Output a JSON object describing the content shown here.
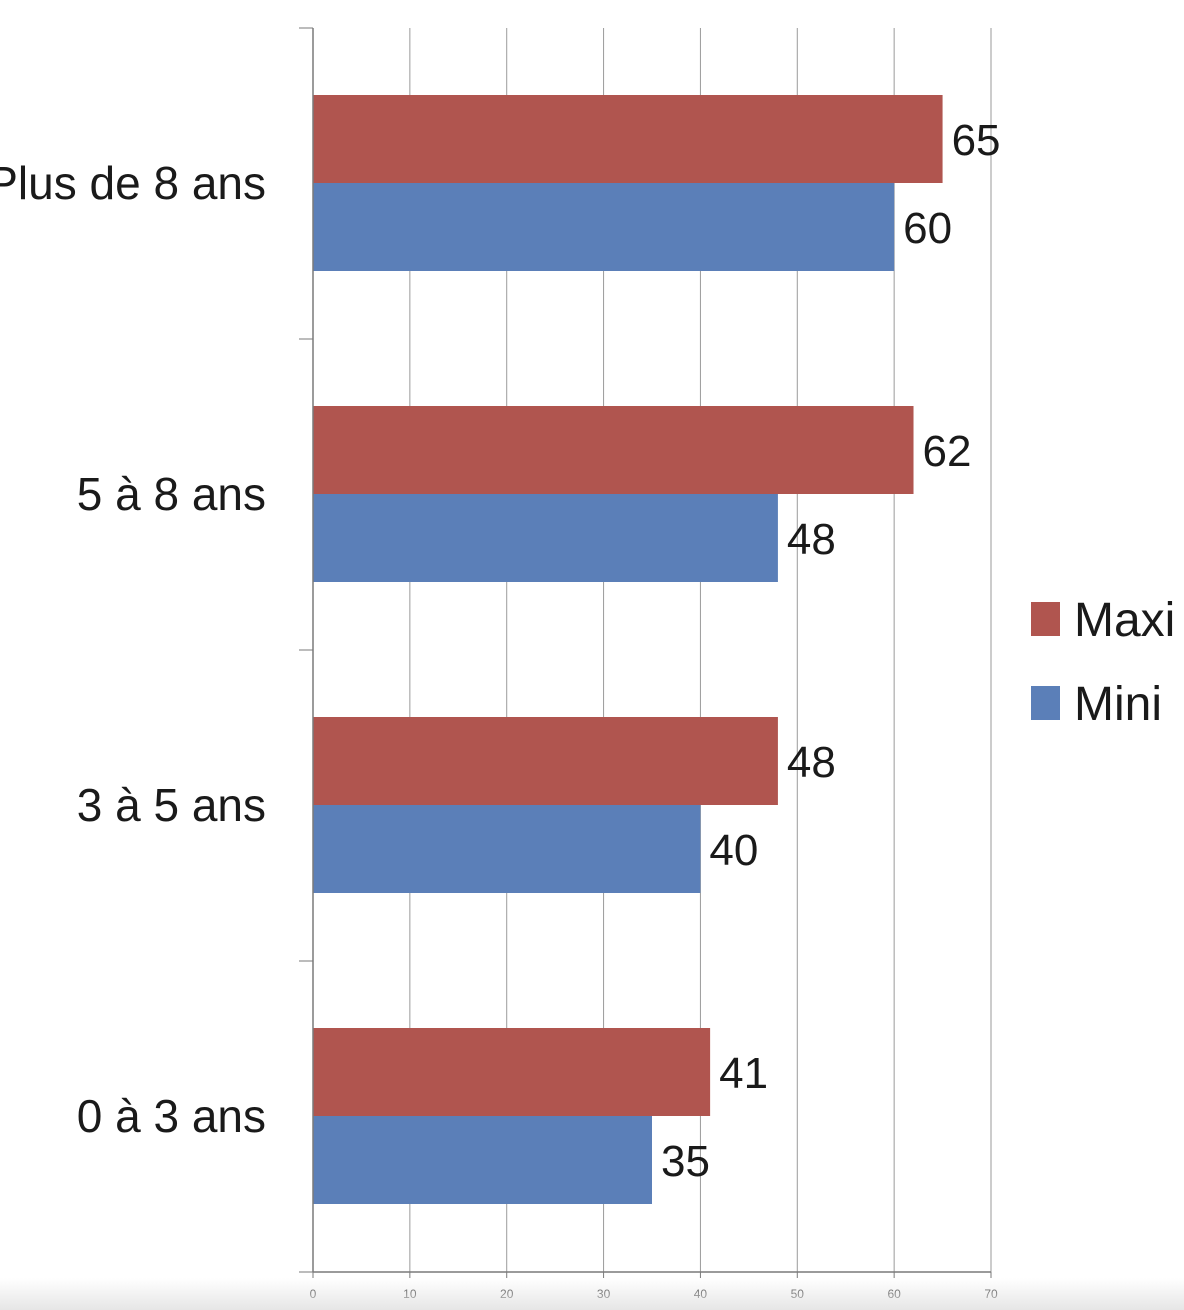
{
  "chart_data": {
    "type": "bar",
    "orientation": "horizontal",
    "categories": [
      "0 à 3 ans",
      "3 à 5 ans",
      "5 à 8 ans",
      "Plus de 8 ans"
    ],
    "series": [
      {
        "name": "Maxi",
        "values": [
          41,
          48,
          62,
          65
        ],
        "color": "#b0554f"
      },
      {
        "name": "Mini",
        "values": [
          35,
          40,
          48,
          60
        ],
        "color": "#5b7fb8"
      }
    ],
    "xlim": [
      0,
      70
    ],
    "x_ticks": [
      0,
      10,
      20,
      30,
      40,
      50,
      60,
      70
    ],
    "grid": true,
    "data_labels": true,
    "legend_position": "right"
  }
}
